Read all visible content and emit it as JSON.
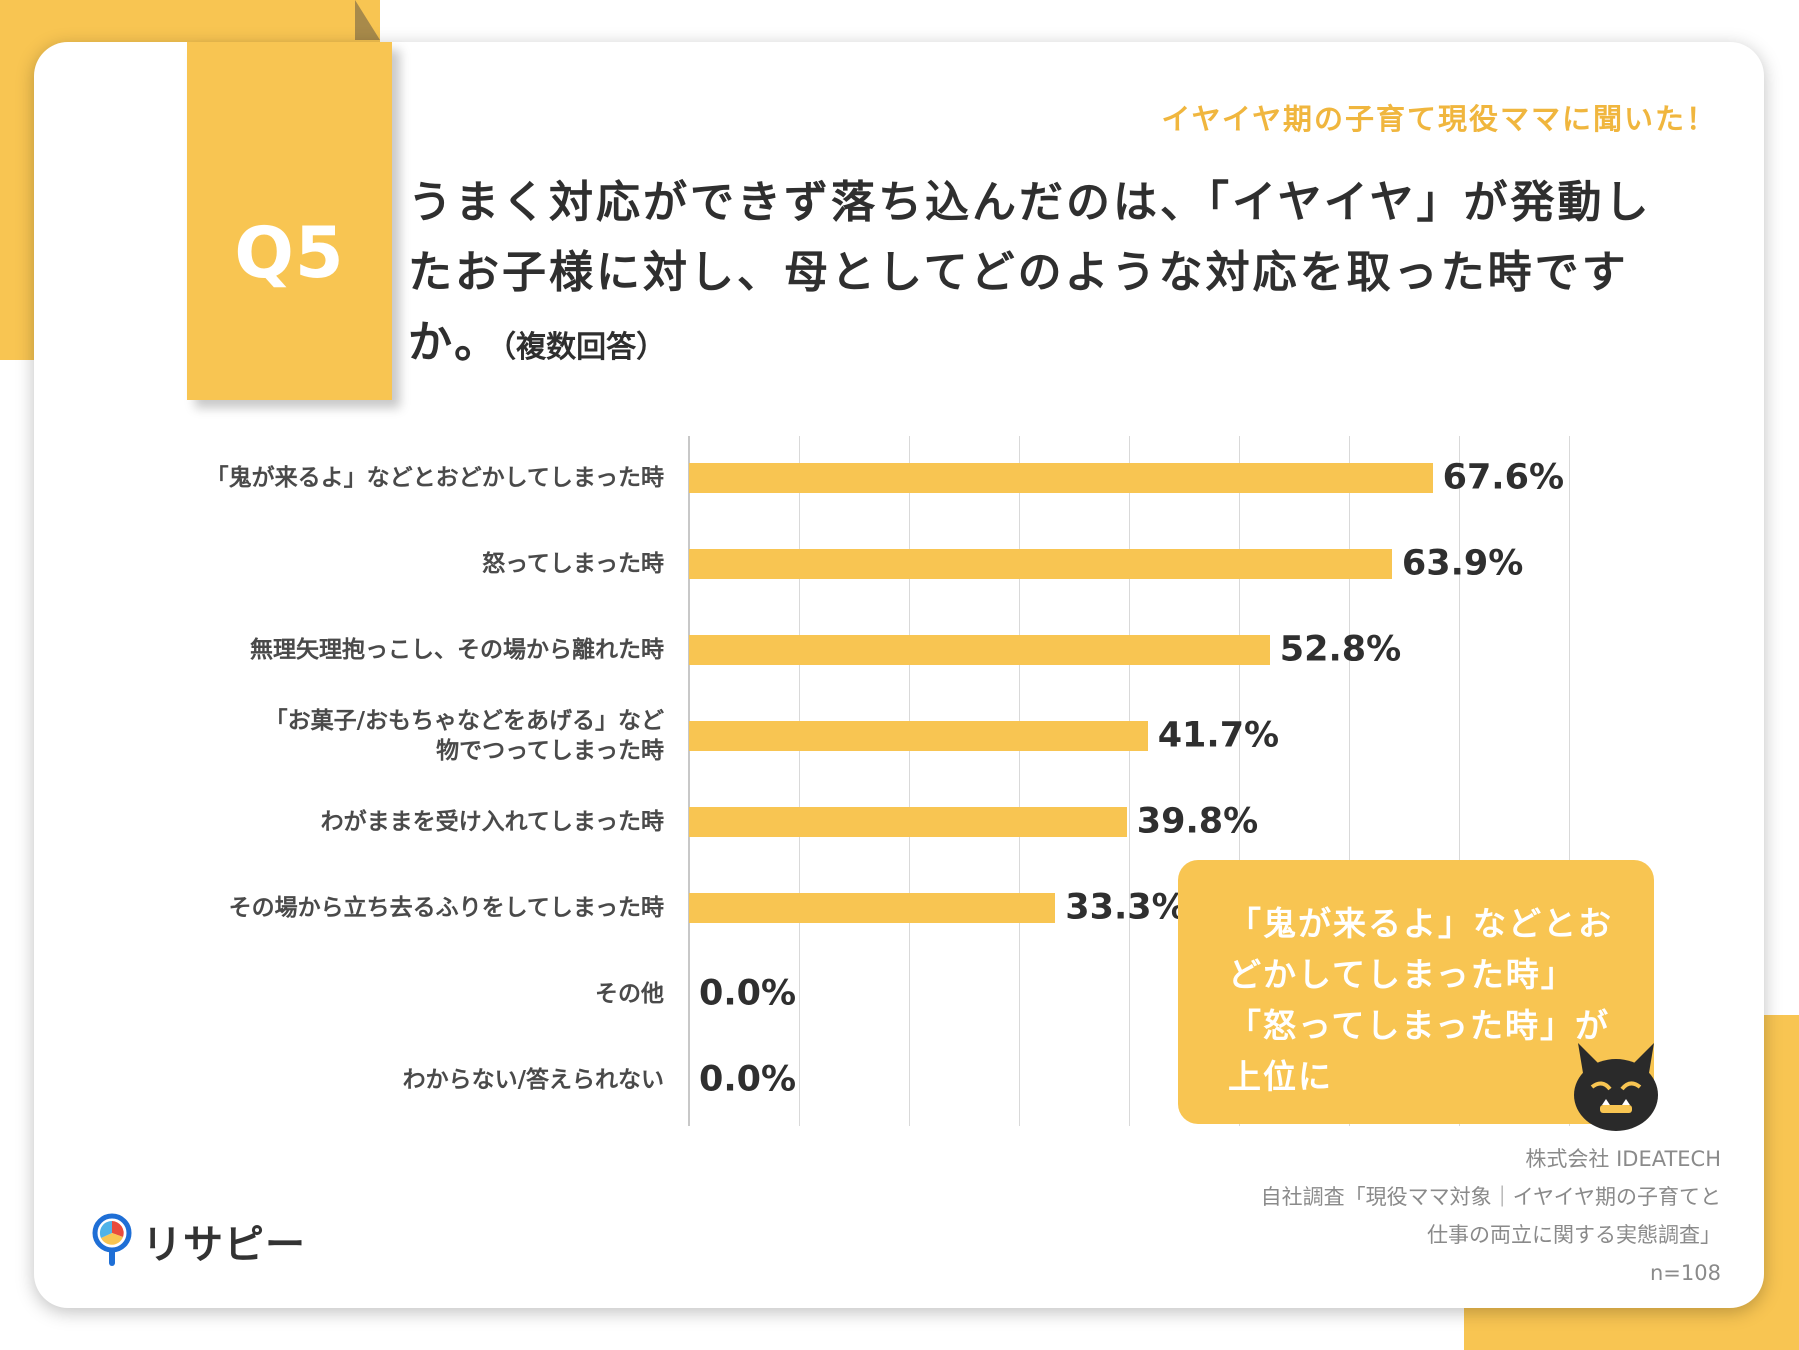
{
  "header": {
    "q_label": "Q5",
    "tagline": "イヤイヤ期の子育て現役ママに聞いた！",
    "question": "うまく対応ができず落ち込んだのは、「イヤイヤ」が発動したお子様に対し、母としてどのような対応を取った時ですか。",
    "question_note": "（複数回答）"
  },
  "chart_data": {
    "type": "bar",
    "orientation": "horizontal",
    "categories": [
      "「鬼が来るよ」などとおどかしてしまった時",
      "怒ってしまった時",
      "無理矢理抱っこし、その場から離れた時",
      "「お菓子/おもちゃなどをあげる」など物でつってしまった時",
      "わがままを受け入れてしまった時",
      "その場から立ち去るふりをしてしまった時",
      "その他",
      "わからない/答えられない"
    ],
    "category_lines": [
      [
        "「鬼が来るよ」などとおどかしてしまった時"
      ],
      [
        "怒ってしまった時"
      ],
      [
        "無理矢理抱っこし、その場から離れた時"
      ],
      [
        "「お菓子/おもちゃなどをあげる」など",
        "物でつってしまった時"
      ],
      [
        "わがままを受け入れてしまった時"
      ],
      [
        "その場から立ち去るふりをしてしまった時"
      ],
      [
        "その他"
      ],
      [
        "わからない/答えられない"
      ]
    ],
    "values": [
      67.6,
      63.9,
      52.8,
      41.7,
      39.8,
      33.3,
      0.0,
      0.0
    ],
    "value_labels": [
      "67.6%",
      "63.9%",
      "52.8%",
      "41.7%",
      "39.8%",
      "33.3%",
      "0.0%",
      "0.0%"
    ],
    "xlim": [
      0,
      80
    ],
    "grid": true,
    "bar_color": "#F8C552"
  },
  "callout": {
    "lines": [
      "「鬼が来るよ」などとお",
      "どかしてしまった時」",
      "「怒ってしまった時」が",
      "上位に"
    ],
    "icon": "oni-icon"
  },
  "source": {
    "lines": [
      "株式会社 IDEATECH",
      "自社調査「現役ママ対象｜イヤイヤ期の子育てと",
      "仕事の両立に関する実態調査」",
      "n=108"
    ]
  },
  "logo": {
    "text": "リサピー"
  },
  "colors": {
    "accent": "#F8C552",
    "tagline": "#F0B63E"
  }
}
